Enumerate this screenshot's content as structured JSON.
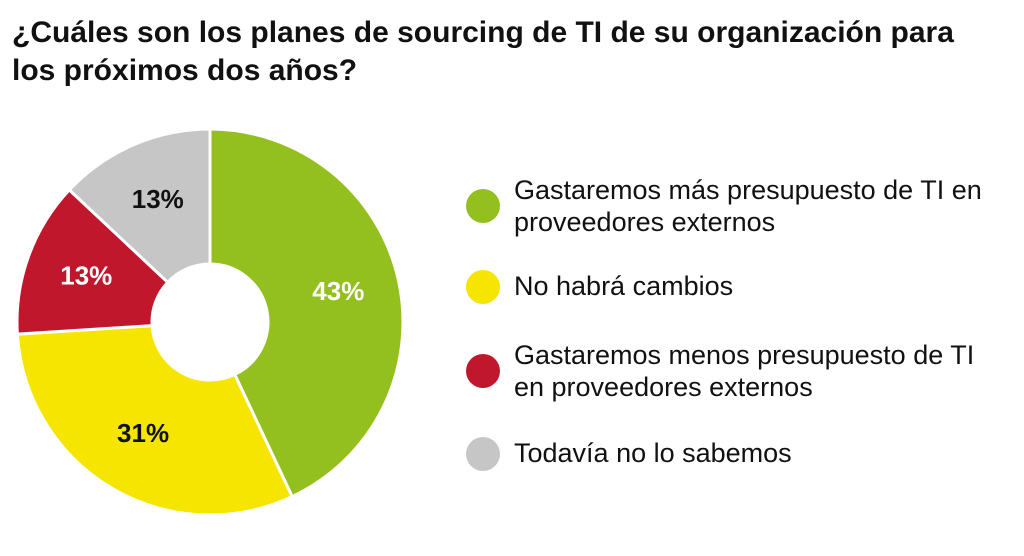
{
  "title": "¿Cuáles son los planes de sourcing de TI de su organización para los próximos dos años?",
  "chart_data": {
    "type": "pie",
    "style": "donut",
    "title": "¿Cuáles son los planes de sourcing de TI de su organización para los próximos dos años?",
    "unit": "%",
    "slices": [
      {
        "label": "Gastaremos más presupuesto de TI en proveedores externos",
        "value": 43,
        "display": "43%",
        "color": "#93c01f",
        "label_color": "#ffffff"
      },
      {
        "label": "No habrá cambios",
        "value": 31,
        "display": "31%",
        "color": "#f6e500",
        "label_color": "#111111"
      },
      {
        "label": "Gastaremos menos presupuesto de TI en proveedores externos",
        "value": 13,
        "display": "13%",
        "color": "#c0172d",
        "label_color": "#ffffff"
      },
      {
        "label": "Todavía no lo sabemos",
        "value": 13,
        "display": "13%",
        "color": "#c6c6c6",
        "label_color": "#111111"
      }
    ],
    "legend_position": "right"
  }
}
